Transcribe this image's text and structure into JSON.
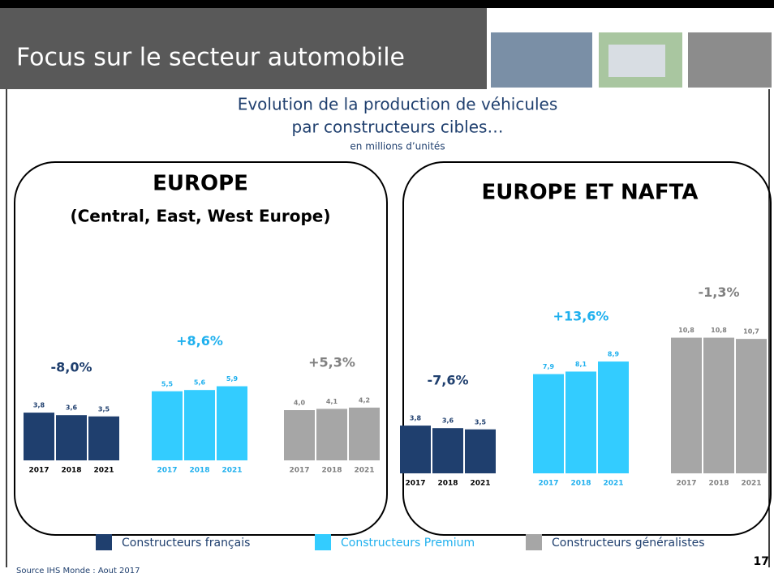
{
  "header": {
    "title": "Focus sur le secteur automobile"
  },
  "subtitle": {
    "lines": [
      "Evolution de la production de véhicules",
      "par constructeurs cibles…"
    ],
    "note": "en millions d’unités"
  },
  "chart_data": [
    {
      "type": "bar",
      "title": "EUROPE",
      "subtitle": "(Central, East, West Europe)",
      "categories": [
        "2017",
        "2018",
        "2021"
      ],
      "series": [
        {
          "name": "Constructeurs français",
          "color": "#1f3f6e",
          "label_color": "#1f3f6e",
          "change": "-8,0%",
          "values": [
            3.8,
            3.6,
            3.5
          ],
          "value_labels": [
            "3,8",
            "3,6",
            "3,5"
          ]
        },
        {
          "name": "Constructeurs Premium",
          "color": "#33ccff",
          "label_color": "#1fb0ee",
          "change": "+8,6%",
          "values": [
            5.5,
            5.6,
            5.9
          ],
          "value_labels": [
            "5,5",
            "5,6",
            "5,9"
          ]
        },
        {
          "name": "Constructeurs généralistes",
          "color": "#a6a6a6",
          "label_color": "#808080",
          "change": "+5,3%",
          "values": [
            4.0,
            4.1,
            4.2
          ],
          "value_labels": [
            "4,0",
            "4,1",
            "4,2"
          ]
        }
      ]
    },
    {
      "type": "bar",
      "title": "EUROPE ET NAFTA",
      "categories": [
        "2017",
        "2018",
        "2021"
      ],
      "series": [
        {
          "color": "#1f3f6e",
          "label_color": "#1f3f6e",
          "change": "-7,6%",
          "values": [
            3.8,
            3.6,
            3.5
          ],
          "value_labels": [
            "3,8",
            "3,6",
            "3,5"
          ]
        },
        {
          "color": "#33ccff",
          "label_color": "#1fb0ee",
          "change": "+13,6%",
          "values": [
            7.9,
            8.1,
            8.9
          ],
          "value_labels": [
            "7,9",
            "8,1",
            "8,9"
          ]
        },
        {
          "color": "#a6a6a6",
          "label_color": "#808080",
          "change": "-1,3%",
          "values": [
            10.8,
            10.8,
            10.7
          ],
          "value_labels": [
            "10,8",
            "10,8",
            "10,7"
          ]
        }
      ]
    }
  ],
  "source": "Source IHS Monde : Aout  2017",
  "page_number": "17"
}
